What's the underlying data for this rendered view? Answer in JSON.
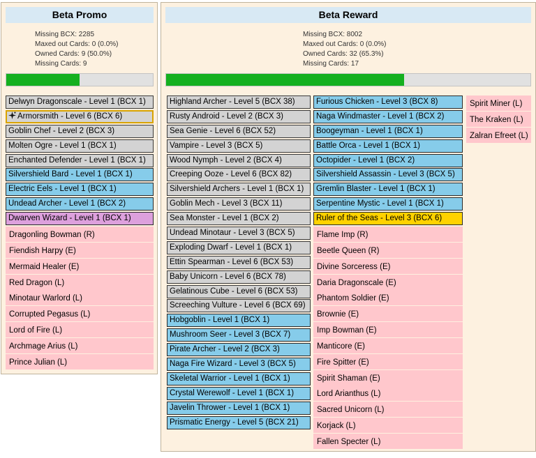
{
  "promo": {
    "title": "Beta Promo",
    "stats": [
      "Missing BCX: 2285",
      "Maxed out Cards: 0 (0.0%)",
      "Owned Cards: 9 (50.0%)",
      "Missing Cards: 9"
    ],
    "progress": 0.5,
    "cards": [
      {
        "label": "Delwyn Dragonscale - Level 1 (BCX 1)",
        "style": "gray"
      },
      {
        "label": "Armorsmith - Level 6 (BCX 6)",
        "style": "gray",
        "selected": true,
        "icon": "sparkle-icon"
      },
      {
        "label": "Goblin Chef - Level 2 (BCX 3)",
        "style": "gray"
      },
      {
        "label": "Molten Ogre - Level 1 (BCX 1)",
        "style": "gray"
      },
      {
        "label": "Enchanted Defender - Level 1 (BCX 1)",
        "style": "gray"
      },
      {
        "label": "Silvershield Bard - Level 1 (BCX 1)",
        "style": "blue"
      },
      {
        "label": "Electric Eels - Level 1 (BCX 1)",
        "style": "blue"
      },
      {
        "label": "Undead Archer - Level 1 (BCX 2)",
        "style": "blue"
      },
      {
        "label": "Dwarven Wizard - Level 1 (BCX 1)",
        "style": "purple"
      },
      {
        "label": "Dragonling Bowman (R)",
        "style": "pink"
      },
      {
        "label": "Fiendish Harpy (E)",
        "style": "pink"
      },
      {
        "label": "Mermaid Healer (E)",
        "style": "pink"
      },
      {
        "label": "Red Dragon (L)",
        "style": "pink"
      },
      {
        "label": "Minotaur Warlord (L)",
        "style": "pink"
      },
      {
        "label": "Corrupted Pegasus (L)",
        "style": "pink"
      },
      {
        "label": "Lord of Fire (L)",
        "style": "pink"
      },
      {
        "label": "Archmage Arius (L)",
        "style": "pink"
      },
      {
        "label": "Prince Julian (L)",
        "style": "pink"
      }
    ]
  },
  "reward": {
    "title": "Beta Reward",
    "stats": [
      "Missing BCX: 8002",
      "Maxed out Cards: 0 (0.0%)",
      "Owned Cards: 32 (65.3%)",
      "Missing Cards: 17"
    ],
    "progress": 0.653,
    "columns": [
      [
        {
          "label": "Highland Archer - Level 5 (BCX 38)",
          "style": "gray"
        },
        {
          "label": "Rusty Android - Level 2 (BCX 3)",
          "style": "gray"
        },
        {
          "label": "Sea Genie - Level 6 (BCX 52)",
          "style": "gray"
        },
        {
          "label": "Vampire - Level 3 (BCX 5)",
          "style": "gray"
        },
        {
          "label": "Wood Nymph - Level 2 (BCX 4)",
          "style": "gray"
        },
        {
          "label": "Creeping Ooze - Level 6 (BCX 82)",
          "style": "gray"
        },
        {
          "label": "Silvershield Archers - Level 1 (BCX 1)",
          "style": "gray"
        },
        {
          "label": "Goblin Mech - Level 3 (BCX 11)",
          "style": "gray"
        },
        {
          "label": "Sea Monster - Level 1 (BCX 2)",
          "style": "gray"
        },
        {
          "label": "Undead Minotaur - Level 3 (BCX 5)",
          "style": "gray"
        },
        {
          "label": "Exploding Dwarf - Level 1 (BCX 1)",
          "style": "gray"
        },
        {
          "label": "Ettin Spearman - Level 6 (BCX 53)",
          "style": "gray"
        },
        {
          "label": "Baby Unicorn - Level 6 (BCX 78)",
          "style": "gray"
        },
        {
          "label": "Gelatinous Cube - Level 6 (BCX 53)",
          "style": "gray"
        },
        {
          "label": "Screeching Vulture - Level 6 (BCX 69)",
          "style": "gray"
        },
        {
          "label": "Hobgoblin - Level 1 (BCX 1)",
          "style": "blue"
        },
        {
          "label": "Mushroom Seer - Level 3 (BCX 7)",
          "style": "blue"
        },
        {
          "label": "Pirate Archer - Level 2 (BCX 3)",
          "style": "blue"
        },
        {
          "label": "Naga Fire Wizard - Level 3 (BCX 5)",
          "style": "blue"
        },
        {
          "label": "Skeletal Warrior - Level 1 (BCX 1)",
          "style": "blue"
        },
        {
          "label": "Crystal Werewolf - Level 1 (BCX 1)",
          "style": "blue"
        },
        {
          "label": "Javelin Thrower - Level 1 (BCX 1)",
          "style": "blue"
        },
        {
          "label": "Prismatic Energy - Level 5 (BCX 21)",
          "style": "blue"
        }
      ],
      [
        {
          "label": "Furious Chicken - Level 3 (BCX 8)",
          "style": "blue"
        },
        {
          "label": "Naga Windmaster - Level 1 (BCX 2)",
          "style": "blue"
        },
        {
          "label": "Boogeyman - Level 1 (BCX 1)",
          "style": "blue"
        },
        {
          "label": "Battle Orca - Level 1 (BCX 1)",
          "style": "blue"
        },
        {
          "label": "Octopider - Level 1 (BCX 2)",
          "style": "blue"
        },
        {
          "label": "Silvershield Assassin - Level 3 (BCX 5)",
          "style": "blue"
        },
        {
          "label": "Gremlin Blaster - Level 1 (BCX 1)",
          "style": "blue"
        },
        {
          "label": "Serpentine Mystic - Level 1 (BCX 1)",
          "style": "blue"
        },
        {
          "label": "Ruler of the Seas - Level 3 (BCX 6)",
          "style": "gold"
        },
        {
          "label": "Flame Imp (R)",
          "style": "pink"
        },
        {
          "label": "Beetle Queen (R)",
          "style": "pink"
        },
        {
          "label": "Divine Sorceress (E)",
          "style": "pink"
        },
        {
          "label": "Daria Dragonscale (E)",
          "style": "pink"
        },
        {
          "label": "Phantom Soldier (E)",
          "style": "pink"
        },
        {
          "label": "Brownie (E)",
          "style": "pink"
        },
        {
          "label": "Imp Bowman (E)",
          "style": "pink"
        },
        {
          "label": "Manticore (E)",
          "style": "pink"
        },
        {
          "label": "Fire Spitter (E)",
          "style": "pink"
        },
        {
          "label": "Spirit Shaman (E)",
          "style": "pink"
        },
        {
          "label": "Lord Arianthus (L)",
          "style": "pink"
        },
        {
          "label": "Sacred Unicorn (L)",
          "style": "pink"
        },
        {
          "label": "Korjack (L)",
          "style": "pink"
        },
        {
          "label": "Fallen Specter (L)",
          "style": "pink"
        }
      ],
      [
        {
          "label": "Spirit Miner (L)",
          "style": "pink"
        },
        {
          "label": "The Kraken (L)",
          "style": "pink"
        },
        {
          "label": "Zalran Efreet (L)",
          "style": "pink"
        }
      ]
    ]
  }
}
